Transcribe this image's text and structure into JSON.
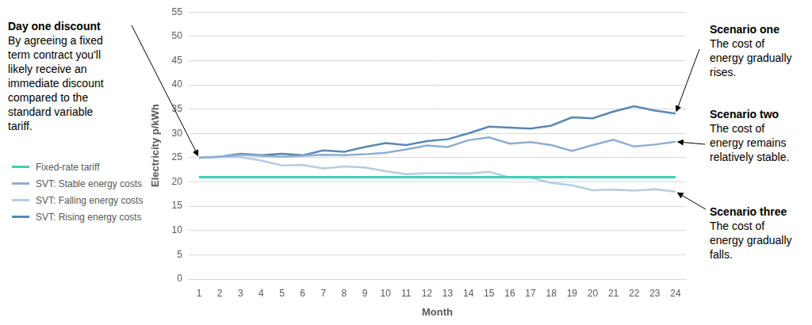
{
  "chart_data": {
    "type": "line",
    "x_label": "Month",
    "y_label": "Electricity p/kWh",
    "categories": [
      "1",
      "2",
      "3",
      "4",
      "5",
      "6",
      "7",
      "8",
      "9",
      "10",
      "11",
      "12",
      "13",
      "14",
      "15",
      "16",
      "17",
      "18",
      "19",
      "20",
      "21",
      "22",
      "23",
      "24"
    ],
    "ylim": [
      0,
      55
    ],
    "yticks": [
      0,
      5,
      10,
      15,
      20,
      25,
      30,
      35,
      40,
      45,
      50,
      55
    ],
    "grid": true,
    "legend": "left",
    "marker": "none",
    "series": [
      {
        "name": "Fixed-rate tariff",
        "color": "#3dd1b4",
        "values": [
          21,
          21,
          21,
          21,
          21,
          21,
          21,
          21,
          21,
          21,
          21,
          21,
          21,
          21,
          21,
          21,
          21,
          21,
          21,
          21,
          21,
          21,
          21,
          21
        ]
      },
      {
        "name": "SVT: Stable energy costs",
        "color": "#8eaed2",
        "values": [
          25,
          25.2,
          25.6,
          25.4,
          25.2,
          25.4,
          25.6,
          25.5,
          25.7,
          26,
          26.7,
          27.5,
          27.2,
          28.6,
          29.2,
          27.9,
          28.2,
          27.6,
          26.4,
          27.6,
          28.7,
          27.3,
          27.7,
          28.3
        ]
      },
      {
        "name": "SVT: Falling energy costs",
        "color": "#b5cce4",
        "values": [
          25,
          25.2,
          25.1,
          24.4,
          23.4,
          23.5,
          22.8,
          23.2,
          23,
          22.2,
          21.6,
          21.8,
          21.8,
          21.7,
          22.1,
          20.9,
          20.9,
          19.8,
          19.3,
          18.3,
          18.4,
          18.2,
          18.5,
          18
        ]
      },
      {
        "name": "SVT: Rising energy costs",
        "color": "#5a87b4",
        "values": [
          25,
          25.2,
          25.8,
          25.5,
          25.8,
          25.5,
          26.5,
          26.2,
          27.2,
          28,
          27.6,
          28.4,
          28.8,
          30,
          31.4,
          31.2,
          31,
          31.6,
          33.3,
          33.1,
          34.5,
          35.6,
          34.7,
          34.1
        ]
      }
    ],
    "annotations": [
      {
        "title": "Day one discount",
        "text": "By agreeing a fixed term contract you'll likely receive an immediate discount compared to the standard variable tariff."
      },
      {
        "title": "Scenario one",
        "text": "The cost of energy gradually rises."
      },
      {
        "title": "Scenario two",
        "text": "The cost of energy remains relatively stable."
      },
      {
        "title": "Scenario three",
        "text": "The cost of energy gradually falls."
      }
    ]
  }
}
